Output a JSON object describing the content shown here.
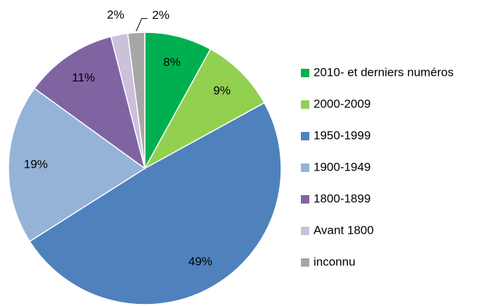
{
  "chart_data": {
    "type": "pie",
    "categories": [
      "2010- et derniers numéros",
      "2000-2009",
      "1950-1999",
      "1900-1949",
      "1800-1899",
      "Avant 1800",
      "inconnu"
    ],
    "values": [
      8,
      9,
      49,
      19,
      11,
      2,
      2
    ],
    "value_labels": [
      "8%",
      "9%",
      "49%",
      "19%",
      "11%",
      "2%",
      "2%"
    ],
    "colors": [
      "#00b050",
      "#92d050",
      "#4f81bd",
      "#95b3d7",
      "#8064a2",
      "#ccc0da",
      "#a6a6a6"
    ],
    "legend": "right"
  }
}
